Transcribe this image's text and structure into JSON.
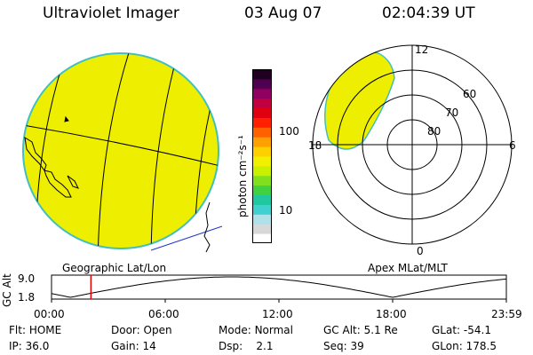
{
  "header": {
    "title": "Ultraviolet Imager",
    "date": "03 Aug 07",
    "time": "02:04:39 UT"
  },
  "colorbar": {
    "unit_label": "photon cm⁻²s⁻¹",
    "ticks": [
      "100",
      "10"
    ],
    "colors": [
      "#ffffff",
      "#d8d8d8",
      "#b0e0e8",
      "#40d0d0",
      "#20c8a0",
      "#40d040",
      "#80e020",
      "#c8f000",
      "#f0f000",
      "#ffd000",
      "#ffa000",
      "#ff6000",
      "#ff2000",
      "#e00010",
      "#c00040",
      "#900060",
      "#500050",
      "#200020"
    ]
  },
  "geo_map": {
    "label": "Geographic Lat/Lon",
    "fill_color": "#eeee00",
    "edge_color": "#40c0c0"
  },
  "polar_plot": {
    "label": "Apex MLat/MLT",
    "mlt_labels": {
      "top": "12",
      "left": "18",
      "right": "6",
      "bottom": "0"
    },
    "lat_labels": [
      "60",
      "70",
      "80"
    ]
  },
  "altitude_plot": {
    "ylabel": "GC Alt",
    "y_ticks": [
      "9.0",
      "1.8"
    ],
    "x_ticks": [
      "00:00",
      "06:00",
      "12:00",
      "18:00",
      "23:59"
    ],
    "current_time_hours": 2.08
  },
  "info": {
    "flt_label": "Flt:",
    "flt_value": "HOME",
    "ip_label": "IP:",
    "ip_value": "36.0",
    "door_label": "Door:",
    "door_value": "Open",
    "gain_label": "Gain:",
    "gain_value": "14",
    "mode_label": "Mode:",
    "mode_value": "Normal",
    "dsp_label": "Dsp:",
    "dsp_value": "2.1",
    "gcalt_label": "GC Alt:",
    "gcalt_value": "5.1 Re",
    "seq_label": "Seq:",
    "seq_value": "39",
    "glat_label": "GLat:",
    "glat_value": "-54.1",
    "glon_label": "GLon:",
    "glon_value": "178.5"
  }
}
